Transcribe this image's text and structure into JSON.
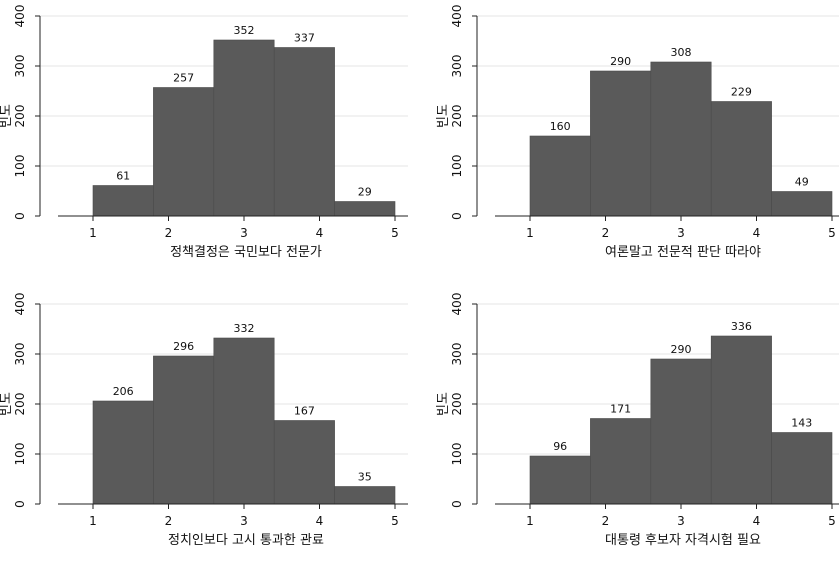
{
  "chart_data": [
    {
      "type": "bar",
      "title": "",
      "xlabel": "정책결정은 국민보다 전문가",
      "ylabel": "빈도",
      "categories": [
        "1",
        "2",
        "3",
        "4",
        "5"
      ],
      "values": [
        61,
        257,
        352,
        337,
        29
      ],
      "ylim": [
        0,
        400
      ],
      "yticks": [
        0,
        100,
        200,
        300,
        400
      ],
      "xticks": [
        1,
        2,
        3,
        4,
        5
      ],
      "grid": true,
      "bar_color": "#5a5a5a",
      "grid_color": "#e6e6e6"
    },
    {
      "type": "bar",
      "title": "",
      "xlabel": "여론말고 전문적 판단 따라야",
      "ylabel": "빈도",
      "categories": [
        "1",
        "2",
        "3",
        "4",
        "5"
      ],
      "values": [
        160,
        290,
        308,
        229,
        49
      ],
      "ylim": [
        0,
        400
      ],
      "yticks": [
        0,
        100,
        200,
        300,
        400
      ],
      "xticks": [
        1,
        2,
        3,
        4,
        5
      ],
      "grid": true,
      "bar_color": "#5a5a5a",
      "grid_color": "#e6e6e6"
    },
    {
      "type": "bar",
      "title": "",
      "xlabel": "정치인보다 고시 통과한 관료",
      "ylabel": "빈도",
      "categories": [
        "1",
        "2",
        "3",
        "4",
        "5"
      ],
      "values": [
        206,
        296,
        332,
        167,
        35
      ],
      "ylim": [
        0,
        400
      ],
      "yticks": [
        0,
        100,
        200,
        300,
        400
      ],
      "xticks": [
        1,
        2,
        3,
        4,
        5
      ],
      "grid": true,
      "bar_color": "#5a5a5a",
      "grid_color": "#e6e6e6"
    },
    {
      "type": "bar",
      "title": "",
      "xlabel": "대통령 후보자 자격시험 필요",
      "ylabel": "빈도",
      "categories": [
        "1",
        "2",
        "3",
        "4",
        "5"
      ],
      "values": [
        96,
        171,
        290,
        336,
        143
      ],
      "ylim": [
        0,
        400
      ],
      "yticks": [
        0,
        100,
        200,
        300,
        400
      ],
      "xticks": [
        1,
        2,
        3,
        4,
        5
      ],
      "grid": true,
      "bar_color": "#5a5a5a",
      "grid_color": "#e6e6e6"
    }
  ]
}
